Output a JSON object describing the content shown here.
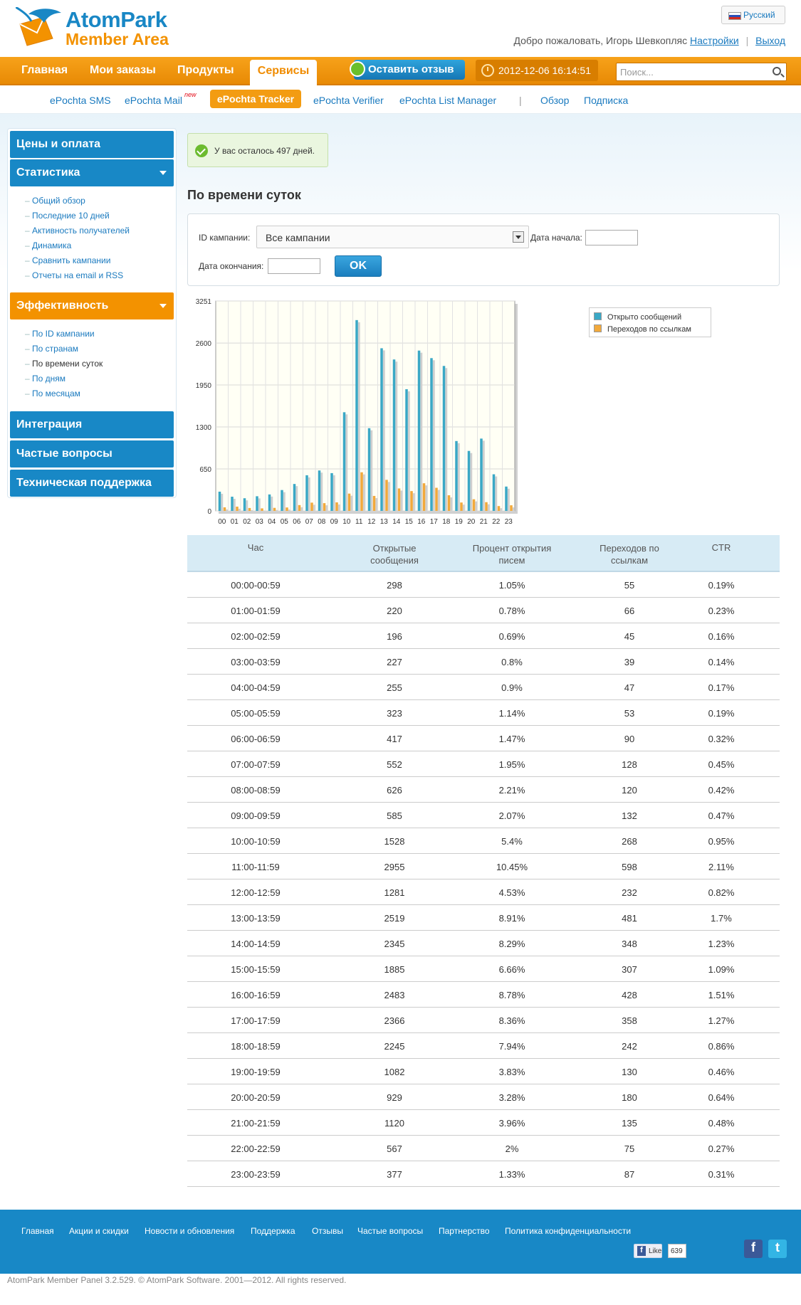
{
  "header": {
    "logo_line1": "AtomPark",
    "logo_line2": "Member Area",
    "language": "Русский",
    "welcome_text": "Добро пожаловать, Игорь Шевкопляс",
    "settings_link": "Настройки",
    "logout_link": "Выход"
  },
  "topnav": {
    "items": [
      "Главная",
      "Мои заказы",
      "Продукты",
      "Сервисы"
    ],
    "active": "Сервисы",
    "feedback_button": "Оставить отзыв",
    "datetime": "2012-12-06 16:14:51",
    "search_placeholder": "Поиск..."
  },
  "subnav": {
    "items": [
      "ePochta SMS",
      "ePochta Mail",
      "ePochta Tracker",
      "ePochta Verifier",
      "ePochta List Manager",
      "Обзор",
      "Подписка"
    ],
    "new_badge": "new",
    "active": "ePochta Tracker"
  },
  "sidebar": {
    "sections": [
      {
        "title": "Цены и оплата"
      },
      {
        "title": "Статистика",
        "links": [
          "Общий обзор",
          "Последние 10 дней",
          "Активность получателей",
          "Динамика",
          "Сравнить кампании",
          "Отчеты на email и RSS"
        ]
      },
      {
        "title": "Эффективность",
        "links": [
          "По ID кампании",
          "По странам",
          "По времени суток",
          "По дням",
          "По месяцам"
        ]
      },
      {
        "title": "Интеграция"
      },
      {
        "title": "Частые вопросы"
      },
      {
        "title": "Техническая поддержка"
      }
    ],
    "current_link": "По времени суток"
  },
  "notice": "У вас осталось 497 дней.",
  "page_title": "По времени суток",
  "filter": {
    "campaign_label": "ID кампании:",
    "campaign_value": "Все кампании",
    "start_label": "Дата начала:",
    "end_label": "Дата окончания:",
    "ok_button": "OK"
  },
  "chart_data": {
    "type": "bar",
    "categories": [
      "00",
      "01",
      "02",
      "03",
      "04",
      "05",
      "06",
      "07",
      "08",
      "09",
      "10",
      "11",
      "12",
      "13",
      "14",
      "15",
      "16",
      "17",
      "18",
      "19",
      "20",
      "21",
      "22",
      "23"
    ],
    "series": [
      {
        "name": "Открыто сообщений",
        "values": [
          298,
          220,
          196,
          227,
          255,
          323,
          417,
          552,
          626,
          585,
          1528,
          2955,
          1281,
          2519,
          2345,
          1885,
          2483,
          2366,
          2245,
          1082,
          929,
          1120,
          567,
          377
        ],
        "color": "#3aa8c6"
      },
      {
        "name": "Переходов по ссылкам",
        "values": [
          55,
          66,
          45,
          39,
          47,
          53,
          90,
          128,
          120,
          132,
          268,
          598,
          232,
          481,
          348,
          307,
          428,
          358,
          242,
          130,
          180,
          135,
          75,
          87
        ],
        "color": "#f2a93b"
      }
    ],
    "ylim": [
      0,
      3251
    ],
    "yticks": [
      "0",
      "650",
      "1300",
      "1950",
      "2600",
      "3251"
    ],
    "grid": true,
    "legend": "right-top"
  },
  "table": {
    "headers": [
      "Час",
      "Открытые сообщения",
      "Процент открытия писем",
      "Переходов по ссылкам",
      "CTR"
    ],
    "rows": [
      [
        "00:00-00:59",
        "298",
        "1.05%",
        "55",
        "0.19%"
      ],
      [
        "01:00-01:59",
        "220",
        "0.78%",
        "66",
        "0.23%"
      ],
      [
        "02:00-02:59",
        "196",
        "0.69%",
        "45",
        "0.16%"
      ],
      [
        "03:00-03:59",
        "227",
        "0.8%",
        "39",
        "0.14%"
      ],
      [
        "04:00-04:59",
        "255",
        "0.9%",
        "47",
        "0.17%"
      ],
      [
        "05:00-05:59",
        "323",
        "1.14%",
        "53",
        "0.19%"
      ],
      [
        "06:00-06:59",
        "417",
        "1.47%",
        "90",
        "0.32%"
      ],
      [
        "07:00-07:59",
        "552",
        "1.95%",
        "128",
        "0.45%"
      ],
      [
        "08:00-08:59",
        "626",
        "2.21%",
        "120",
        "0.42%"
      ],
      [
        "09:00-09:59",
        "585",
        "2.07%",
        "132",
        "0.47%"
      ],
      [
        "10:00-10:59",
        "1528",
        "5.4%",
        "268",
        "0.95%"
      ],
      [
        "11:00-11:59",
        "2955",
        "10.45%",
        "598",
        "2.11%"
      ],
      [
        "12:00-12:59",
        "1281",
        "4.53%",
        "232",
        "0.82%"
      ],
      [
        "13:00-13:59",
        "2519",
        "8.91%",
        "481",
        "1.7%"
      ],
      [
        "14:00-14:59",
        "2345",
        "8.29%",
        "348",
        "1.23%"
      ],
      [
        "15:00-15:59",
        "1885",
        "6.66%",
        "307",
        "1.09%"
      ],
      [
        "16:00-16:59",
        "2483",
        "8.78%",
        "428",
        "1.51%"
      ],
      [
        "17:00-17:59",
        "2366",
        "8.36%",
        "358",
        "1.27%"
      ],
      [
        "18:00-18:59",
        "2245",
        "7.94%",
        "242",
        "0.86%"
      ],
      [
        "19:00-19:59",
        "1082",
        "3.83%",
        "130",
        "0.46%"
      ],
      [
        "20:00-20:59",
        "929",
        "3.28%",
        "180",
        "0.64%"
      ],
      [
        "21:00-21:59",
        "1120",
        "3.96%",
        "135",
        "0.48%"
      ],
      [
        "22:00-22:59",
        "567",
        "2%",
        "75",
        "0.27%"
      ],
      [
        "23:00-23:59",
        "377",
        "1.33%",
        "87",
        "0.31%"
      ]
    ]
  },
  "footer": {
    "links": [
      "Главная",
      "Акции и скидки",
      "Новости и обновления",
      "Поддержка",
      "Отзывы",
      "Частые вопросы",
      "Партнерство",
      "Политика конфиденциальности"
    ],
    "fb_like": "Like",
    "fb_count": "639",
    "copyright": "AtomPark Member Panel 3.2.529. © AtomPark Software. 2001—2012. All rights reserved."
  }
}
